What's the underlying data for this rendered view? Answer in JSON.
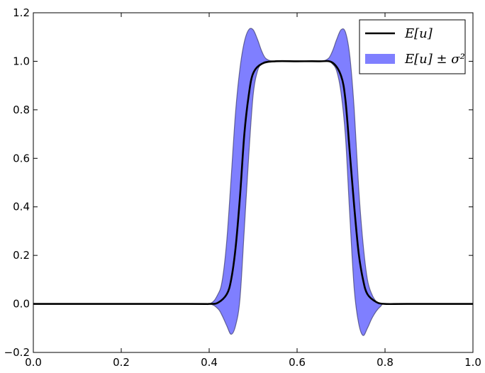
{
  "chart_data": {
    "type": "line",
    "title": "",
    "xlabel": "",
    "ylabel": "",
    "xlim": [
      0.0,
      1.0
    ],
    "ylim": [
      -0.2,
      1.2
    ],
    "grid": false,
    "legend_position": "top-right",
    "x_ticks": [
      "0.0",
      "0.2",
      "0.4",
      "0.6",
      "0.8",
      "1.0"
    ],
    "y_ticks": [
      "−0.2",
      "0.0",
      "0.2",
      "0.4",
      "0.6",
      "0.8",
      "1.0",
      "1.2"
    ],
    "series": [
      {
        "name": "E[u]",
        "kind": "line",
        "color": "#000000",
        "x": [
          0.0,
          0.35,
          0.4,
          0.42,
          0.44,
          0.45,
          0.46,
          0.47,
          0.48,
          0.49,
          0.5,
          0.52,
          0.55,
          0.6,
          0.65,
          0.68,
          0.7,
          0.71,
          0.72,
          0.73,
          0.74,
          0.75,
          0.76,
          0.78,
          0.8,
          0.85,
          1.0
        ],
        "y": [
          0.0,
          0.0,
          0.0,
          0.005,
          0.04,
          0.1,
          0.23,
          0.44,
          0.7,
          0.86,
          0.95,
          0.99,
          1.0,
          1.0,
          1.0,
          0.995,
          0.94,
          0.84,
          0.62,
          0.4,
          0.21,
          0.1,
          0.04,
          0.008,
          0.0,
          0.0,
          0.0
        ]
      },
      {
        "name": "E[u] ± σ²",
        "kind": "band",
        "color": "#7f7fff",
        "x": [
          0.0,
          0.35,
          0.4,
          0.42,
          0.43,
          0.44,
          0.45,
          0.46,
          0.47,
          0.48,
          0.49,
          0.5,
          0.51,
          0.52,
          0.53,
          0.55,
          0.6,
          0.65,
          0.67,
          0.68,
          0.69,
          0.7,
          0.71,
          0.72,
          0.73,
          0.74,
          0.75,
          0.76,
          0.77,
          0.78,
          0.79,
          0.8,
          0.85,
          1.0
        ],
        "upper": [
          0.0,
          0.0,
          0.0,
          0.04,
          0.1,
          0.26,
          0.52,
          0.79,
          0.97,
          1.08,
          1.13,
          1.13,
          1.09,
          1.04,
          1.01,
          1.0,
          1.0,
          1.0,
          1.01,
          1.04,
          1.09,
          1.13,
          1.12,
          1.02,
          0.8,
          0.48,
          0.25,
          0.1,
          0.04,
          0.01,
          0.0,
          0.0,
          0.0,
          0.0
        ],
        "lower": [
          0.0,
          0.0,
          0.0,
          -0.02,
          -0.05,
          -0.09,
          -0.125,
          -0.09,
          0.02,
          0.31,
          0.61,
          0.86,
          0.96,
          0.99,
          1.0,
          1.0,
          1.0,
          1.0,
          1.0,
          0.99,
          0.96,
          0.87,
          0.69,
          0.36,
          0.06,
          -0.08,
          -0.13,
          -0.1,
          -0.06,
          -0.03,
          -0.01,
          0.0,
          0.0,
          0.0
        ]
      }
    ]
  }
}
